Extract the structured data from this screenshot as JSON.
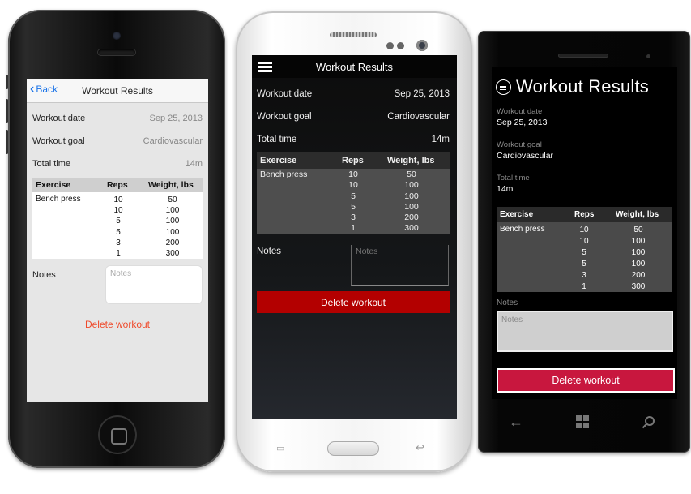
{
  "ios": {
    "back_label": "Back",
    "title": "Workout Results",
    "fields": [
      {
        "label": "Workout date",
        "value": "Sep 25, 2013"
      },
      {
        "label": "Workout goal",
        "value": "Cardiovascular"
      },
      {
        "label": "Total time",
        "value": "14m"
      }
    ],
    "table_headers": [
      "Exercise",
      "Reps",
      "Weight, lbs"
    ],
    "exercise": "Bench press",
    "reps": [
      "10",
      "10",
      "5",
      "5",
      "3",
      "1"
    ],
    "weights": [
      "50",
      "100",
      "100",
      "100",
      "200",
      "300"
    ],
    "notes_label": "Notes",
    "notes_placeholder": "Notes",
    "delete_label": "Delete workout",
    "delete_color": "#ef4a2b",
    "back_color": "#1a73e8"
  },
  "android": {
    "title": "Workout Results",
    "fields": [
      {
        "label": "Workout date",
        "value": "Sep 25, 2013"
      },
      {
        "label": "Workout goal",
        "value": "Cardiovascular"
      },
      {
        "label": "Total time",
        "value": "14m"
      }
    ],
    "table_headers": [
      "Exercise",
      "Reps",
      "Weight, lbs"
    ],
    "exercise": "Bench press",
    "reps": [
      "10",
      "10",
      "5",
      "5",
      "3",
      "1"
    ],
    "weights": [
      "50",
      "100",
      "100",
      "100",
      "200",
      "300"
    ],
    "notes_label": "Notes",
    "notes_placeholder": "Notes",
    "delete_label": "Delete workout",
    "delete_color": "#b30000"
  },
  "windows": {
    "title": "Workout Results",
    "fields": [
      {
        "label": "Workout date",
        "value": "Sep 25, 2013"
      },
      {
        "label": "Workout goal",
        "value": "Cardiovascular"
      },
      {
        "label": "Total time",
        "value": "14m"
      }
    ],
    "table_headers": [
      "Exercise",
      "Reps",
      "Weight, lbs"
    ],
    "exercise": "Bench press",
    "reps": [
      "10",
      "10",
      "5",
      "5",
      "3",
      "1"
    ],
    "weights": [
      "50",
      "100",
      "100",
      "100",
      "200",
      "300"
    ],
    "notes_label": "Notes",
    "notes_placeholder": "Notes",
    "delete_label": "Delete workout",
    "delete_color": "#c8173e",
    "hardware_keys": [
      "back-arrow-icon",
      "windows-logo-icon",
      "search-icon"
    ]
  }
}
